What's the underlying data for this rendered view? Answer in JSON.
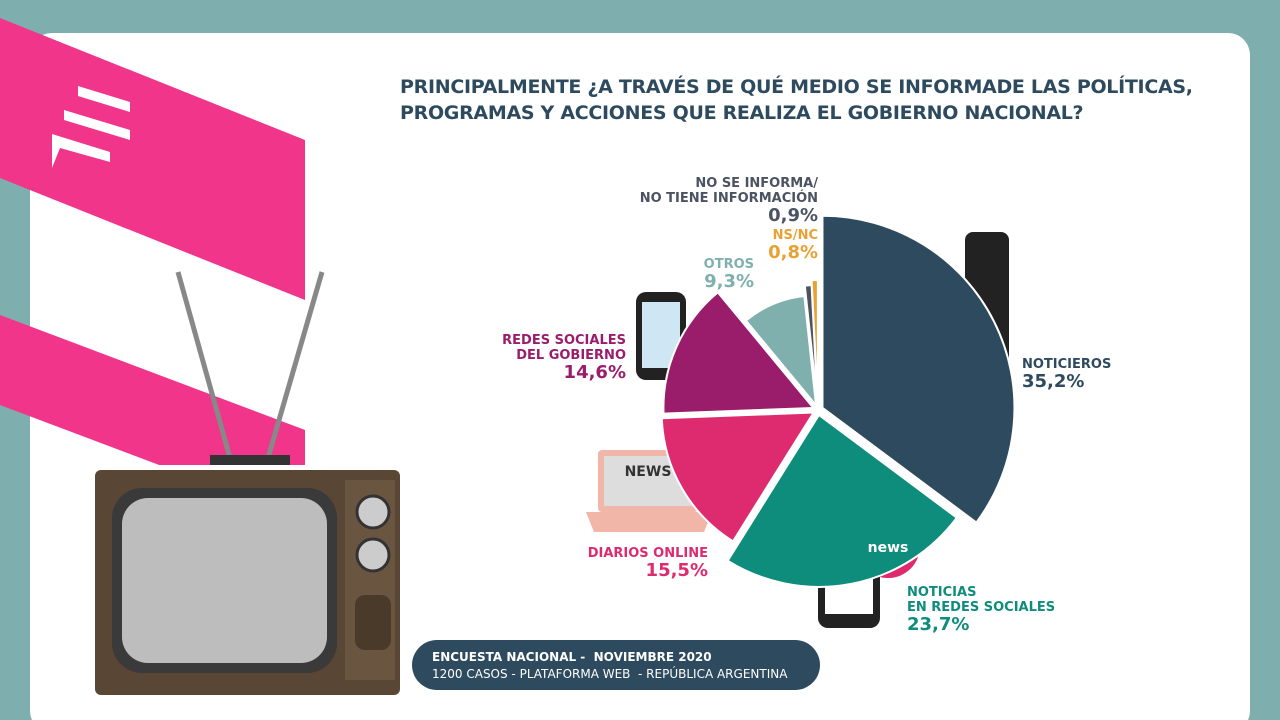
{
  "chart_data": {
    "type": "pie",
    "title": "PRINCIPALMENTE ¿A TRAVÉS DE QUÉ MEDIO SE INFORMADE LAS POLÍTICAS,\nPROGRAMAS Y ACCIONES QUE REALIZA EL GOBIERNO NACIONAL?",
    "categories": [
      "NOTICIEROS",
      "NOTICIAS\nEN REDES SOCIALES",
      "DIARIOS ONLINE",
      "REDES SOCIALES\nDEL GOBIERNO",
      "OTROS",
      "NO SE INFORMA/\nNO TIENE INFORMACIÓN",
      "NS/NC"
    ],
    "values": [
      35.2,
      23.7,
      15.5,
      14.6,
      9.3,
      0.9,
      0.8
    ],
    "value_labels": [
      "35,2%",
      "23,7%",
      "15,5%",
      "14,6%",
      "9,3%",
      "0,9%",
      "0,8%"
    ],
    "colors": [
      "#2e4a5e",
      "#0e8c7c",
      "#de2a6f",
      "#9a1d6b",
      "#7fb0ad",
      "#4b5262",
      "#e8a133"
    ]
  },
  "footer": {
    "line1": "ENCUESTA NACIONAL -  NOVIEMBRE 2020",
    "line2": "1200 CASOS - PLATAFORMA WEB  - REPÚBLICA ARGENTINA"
  },
  "decor": {
    "bubble": "news",
    "laptop": "NEWS"
  }
}
